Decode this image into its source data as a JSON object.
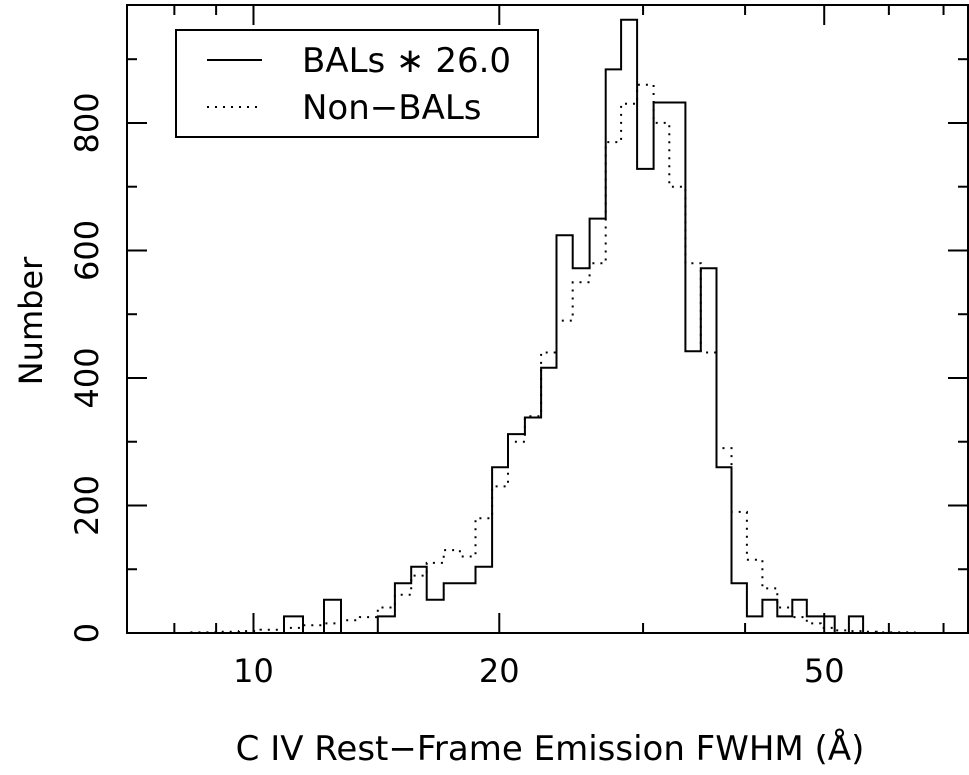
{
  "chart_data": {
    "type": "histogram-step",
    "xscale": "log",
    "xlim": [
      7,
      75
    ],
    "ylim": [
      0,
      985
    ],
    "xlabel": "C IV Rest−Frame Emission FWHM (Å)",
    "ylabel": "Number",
    "xticks_major": [
      10,
      20,
      50
    ],
    "yticks_major": [
      0,
      200,
      400,
      600,
      800
    ],
    "legend": {
      "placement": "top-left",
      "entries": [
        {
          "label": "BALs ∗ 26.0",
          "style": "solid"
        },
        {
          "label": "Non−BALs",
          "style": "dotted"
        }
      ]
    },
    "bin_edges": [
      7.0,
      7.6,
      8.3,
      9.0,
      9.6,
      10.2,
      10.9,
      11.5,
      12.2,
      12.8,
      13.5,
      14.2,
      14.9,
      15.6,
      16.3,
      17.1,
      17.9,
      18.7,
      19.6,
      20.5,
      21.5,
      22.5,
      23.5,
      24.6,
      25.8,
      27.0,
      28.2,
      29.5,
      30.9,
      32.3,
      33.8,
      35.3,
      36.9,
      38.5,
      40.2,
      42.0,
      43.8,
      45.7,
      47.6,
      49.5,
      51.5,
      53.6,
      55.8,
      58.0,
      61.0,
      64.5,
      68.5,
      75.0
    ],
    "series": [
      {
        "name": "BALs ∗ 26.0",
        "values": [
          0,
          0,
          0,
          0,
          0,
          0,
          26,
          0,
          52,
          0,
          0,
          26,
          78,
          104,
          52,
          78,
          78,
          104,
          260,
          312,
          338,
          416,
          624,
          572,
          650,
          884,
          962,
          728,
          832,
          832,
          442,
          572,
          260,
          78,
          26,
          52,
          26,
          52,
          26,
          26,
          0,
          26,
          0,
          0,
          0,
          0,
          0
        ]
      },
      {
        "name": "Non−BALs",
        "values": [
          0,
          0,
          1,
          2,
          3,
          5,
          8,
          12,
          15,
          20,
          25,
          40,
          60,
          90,
          110,
          130,
          120,
          180,
          230,
          300,
          340,
          440,
          490,
          550,
          580,
          770,
          830,
          860,
          800,
          700,
          580,
          440,
          290,
          190,
          115,
          70,
          40,
          25,
          15,
          8,
          4,
          3,
          2,
          1,
          1,
          0,
          0
        ]
      }
    ]
  }
}
